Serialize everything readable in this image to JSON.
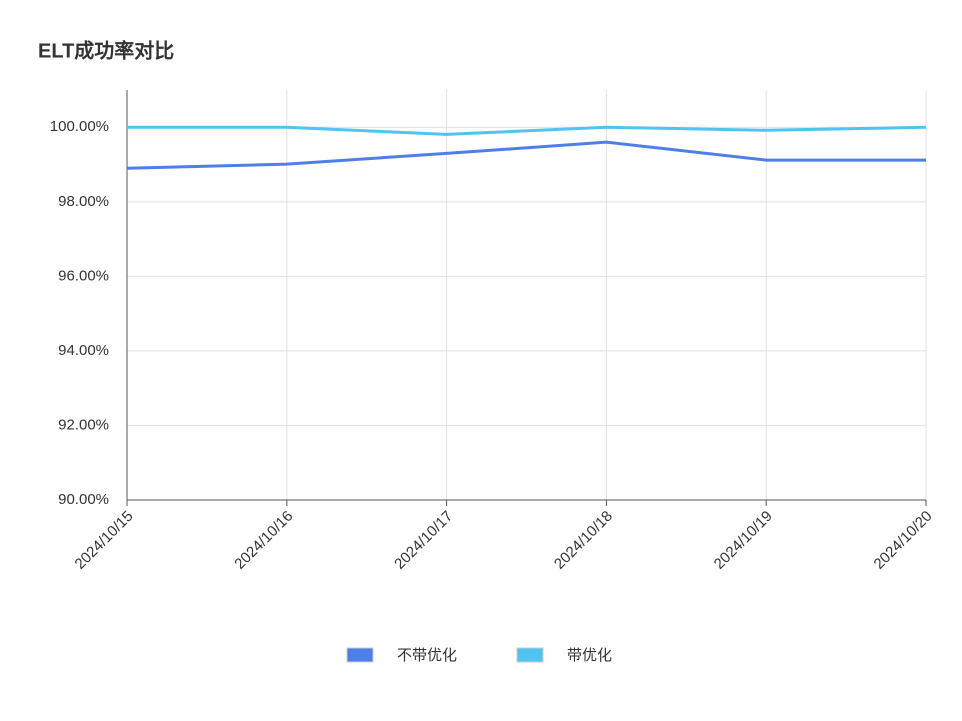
{
  "chart_data": {
    "type": "line",
    "title": "ELT成功率对比",
    "categories": [
      "2024/10/15",
      "2024/10/16",
      "2024/10/17",
      "2024/10/18",
      "2024/10/19",
      "2024/10/20"
    ],
    "series": [
      {
        "name": "不带优化",
        "color": "#4e7fe9",
        "values": [
          98.9,
          99.01,
          99.3,
          99.6,
          99.12,
          99.12
        ]
      },
      {
        "name": "带优化",
        "color": "#4fc4f0",
        "values": [
          100,
          100,
          99.81,
          100,
          99.92,
          100
        ]
      }
    ],
    "ylim": [
      90,
      101
    ],
    "yticks": [
      {
        "value": 90,
        "label": "90.00%"
      },
      {
        "value": 92,
        "label": "92.00%"
      },
      {
        "value": 94,
        "label": "94.00%"
      },
      {
        "value": 96,
        "label": "96.00%"
      },
      {
        "value": 98,
        "label": "98.00%"
      },
      {
        "value": 100,
        "label": "100.00%"
      }
    ],
    "grid": true
  }
}
